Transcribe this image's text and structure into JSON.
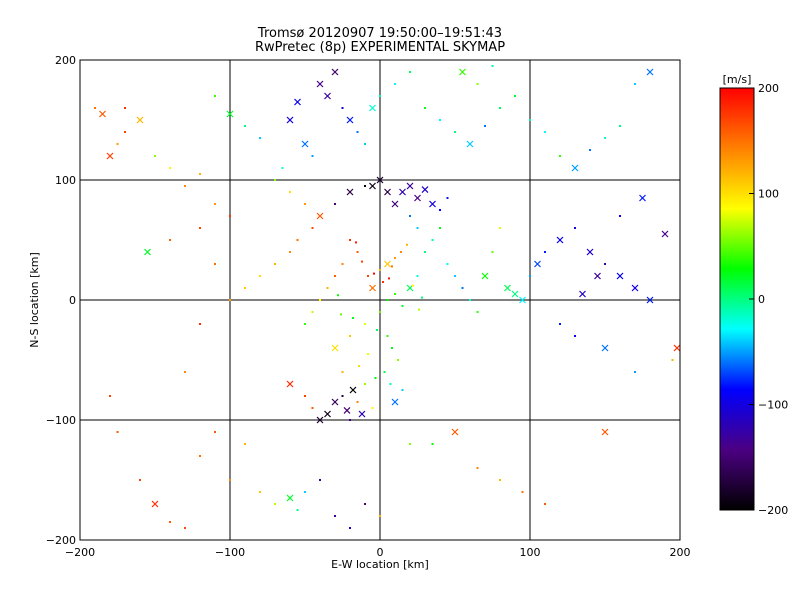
{
  "chart_data": {
    "type": "scatter",
    "title": "Tromsø 20120907 19:50:00–19:51:43",
    "subtitle": "RwPretec (8p) EXPERIMENTAL SKYMAP",
    "xlabel": "E-W location [km]",
    "ylabel": "N-S location [km]",
    "xlim": [
      -200,
      200
    ],
    "ylim": [
      -200,
      200
    ],
    "x_ticks": [
      -200,
      -100,
      0,
      100,
      200
    ],
    "y_ticks": [
      -200,
      -100,
      0,
      100,
      200
    ],
    "x_tick_labels": [
      "−200",
      "−100",
      "0",
      "100",
      "200"
    ],
    "y_tick_labels": [
      "−200",
      "−100",
      "0",
      "100",
      "200"
    ],
    "grid_lines_x": [
      -100,
      0,
      100
    ],
    "grid_lines_y": [
      -100,
      0,
      100
    ],
    "markers": [
      "dot",
      "cross"
    ],
    "colorbar": {
      "label": "[m/s]",
      "range": [
        -200,
        200
      ],
      "ticks": [
        200,
        100,
        0,
        -100,
        -200
      ],
      "tick_labels": [
        "200",
        "100",
        "0",
        "−100",
        "−200"
      ],
      "colormap": [
        "#000000",
        "#4b0082",
        "#0000ff",
        "#00ffff",
        "#00ff00",
        "#ffff00",
        "#ff8000",
        "#ff0000"
      ]
    },
    "points": [
      [
        -190,
        160,
        150,
        "dot"
      ],
      [
        -185,
        155,
        160,
        "cross"
      ],
      [
        -170,
        140,
        170,
        "dot"
      ],
      [
        -175,
        130,
        130,
        "dot"
      ],
      [
        -160,
        150,
        120,
        "cross"
      ],
      [
        -150,
        120,
        60,
        "dot"
      ],
      [
        -140,
        110,
        90,
        "dot"
      ],
      [
        -130,
        95,
        140,
        "dot"
      ],
      [
        -120,
        105,
        120,
        "dot"
      ],
      [
        -110,
        80,
        130,
        "dot"
      ],
      [
        -100,
        70,
        180,
        "dot"
      ],
      [
        -180,
        120,
        170,
        "cross"
      ],
      [
        -170,
        160,
        180,
        "dot"
      ],
      [
        -155,
        40,
        20,
        "cross"
      ],
      [
        -120,
        -20,
        180,
        "dot"
      ],
      [
        -130,
        -60,
        140,
        "dot"
      ],
      [
        -180,
        -80,
        170,
        "dot"
      ],
      [
        -175,
        -110,
        160,
        "dot"
      ],
      [
        -160,
        -150,
        170,
        "dot"
      ],
      [
        -150,
        -170,
        180,
        "cross"
      ],
      [
        -140,
        -185,
        160,
        "dot"
      ],
      [
        -130,
        -190,
        170,
        "dot"
      ],
      [
        -120,
        -130,
        150,
        "dot"
      ],
      [
        -110,
        -110,
        160,
        "dot"
      ],
      [
        -100,
        -150,
        140,
        "dot"
      ],
      [
        -90,
        -120,
        120,
        "dot"
      ],
      [
        -80,
        -160,
        110,
        "dot"
      ],
      [
        -70,
        -170,
        70,
        "dot"
      ],
      [
        -60,
        -165,
        20,
        "cross"
      ],
      [
        -55,
        -175,
        0,
        "dot"
      ],
      [
        -50,
        -160,
        -40,
        "dot"
      ],
      [
        -40,
        -150,
        -120,
        "dot"
      ],
      [
        -30,
        -180,
        -130,
        "dot"
      ],
      [
        -20,
        -190,
        -110,
        "dot"
      ],
      [
        -10,
        -170,
        -150,
        "dot"
      ],
      [
        0,
        -180,
        120,
        "dot"
      ],
      [
        20,
        -120,
        60,
        "dot"
      ],
      [
        35,
        -120,
        30,
        "dot"
      ],
      [
        50,
        -110,
        160,
        "cross"
      ],
      [
        65,
        -140,
        140,
        "dot"
      ],
      [
        80,
        -150,
        120,
        "dot"
      ],
      [
        95,
        -160,
        150,
        "dot"
      ],
      [
        110,
        -170,
        160,
        "dot"
      ],
      [
        150,
        -110,
        160,
        "cross"
      ],
      [
        -60,
        -70,
        180,
        "cross"
      ],
      [
        -50,
        -80,
        170,
        "dot"
      ],
      [
        -45,
        -90,
        160,
        "dot"
      ],
      [
        -40,
        -100,
        -180,
        "cross"
      ],
      [
        -35,
        -95,
        -190,
        "cross"
      ],
      [
        -30,
        -85,
        -160,
        "cross"
      ],
      [
        -25,
        -80,
        -170,
        "dot"
      ],
      [
        -22,
        -92,
        -150,
        "cross"
      ],
      [
        -20,
        -100,
        -140,
        "dot"
      ],
      [
        -18,
        -75,
        -200,
        "cross"
      ],
      [
        -15,
        -85,
        140,
        "dot"
      ],
      [
        -12,
        -95,
        -120,
        "cross"
      ],
      [
        -10,
        -70,
        60,
        "dot"
      ],
      [
        -5,
        -90,
        90,
        "dot"
      ],
      [
        -25,
        -60,
        120,
        "dot"
      ],
      [
        -30,
        -40,
        100,
        "cross"
      ],
      [
        -20,
        -30,
        110,
        "dot"
      ],
      [
        -10,
        -20,
        80,
        "dot"
      ],
      [
        0,
        -10,
        50,
        "dot"
      ],
      [
        5,
        0,
        30,
        "dot"
      ],
      [
        10,
        5,
        40,
        "dot"
      ],
      [
        -5,
        10,
        150,
        "cross"
      ],
      [
        -8,
        20,
        170,
        "dot"
      ],
      [
        0,
        25,
        120,
        "dot"
      ],
      [
        5,
        30,
        110,
        "cross"
      ],
      [
        10,
        35,
        130,
        "dot"
      ],
      [
        -15,
        40,
        160,
        "dot"
      ],
      [
        -20,
        50,
        180,
        "dot"
      ],
      [
        -25,
        30,
        140,
        "dot"
      ],
      [
        -30,
        20,
        160,
        "dot"
      ],
      [
        -35,
        10,
        120,
        "dot"
      ],
      [
        -40,
        0,
        90,
        "dot"
      ],
      [
        -45,
        -10,
        70,
        "dot"
      ],
      [
        -50,
        -20,
        40,
        "dot"
      ],
      [
        15,
        -5,
        20,
        "dot"
      ],
      [
        20,
        10,
        10,
        "cross"
      ],
      [
        25,
        20,
        -20,
        "dot"
      ],
      [
        30,
        40,
        0,
        "dot"
      ],
      [
        35,
        50,
        -10,
        "dot"
      ],
      [
        40,
        60,
        20,
        "dot"
      ],
      [
        45,
        30,
        -30,
        "dot"
      ],
      [
        50,
        20,
        -40,
        "dot"
      ],
      [
        55,
        10,
        -60,
        "dot"
      ],
      [
        60,
        0,
        -20,
        "dot"
      ],
      [
        65,
        -10,
        40,
        "dot"
      ],
      [
        70,
        20,
        30,
        "cross"
      ],
      [
        75,
        40,
        50,
        "dot"
      ],
      [
        80,
        60,
        80,
        "dot"
      ],
      [
        85,
        10,
        10,
        "cross"
      ],
      [
        90,
        5,
        0,
        "cross"
      ],
      [
        95,
        0,
        -30,
        "cross"
      ],
      [
        100,
        20,
        -50,
        "dot"
      ],
      [
        105,
        30,
        -70,
        "cross"
      ],
      [
        110,
        40,
        -80,
        "dot"
      ],
      [
        120,
        50,
        -90,
        "cross"
      ],
      [
        130,
        60,
        -100,
        "dot"
      ],
      [
        140,
        40,
        -110,
        "cross"
      ],
      [
        150,
        30,
        -120,
        "dot"
      ],
      [
        160,
        20,
        -90,
        "cross"
      ],
      [
        170,
        10,
        -100,
        "cross"
      ],
      [
        180,
        0,
        -80,
        "cross"
      ],
      [
        190,
        55,
        -140,
        "cross"
      ],
      [
        175,
        85,
        -80,
        "cross"
      ],
      [
        160,
        70,
        -90,
        "dot"
      ],
      [
        145,
        20,
        -130,
        "cross"
      ],
      [
        135,
        5,
        -110,
        "cross"
      ],
      [
        120,
        -20,
        -80,
        "dot"
      ],
      [
        130,
        -30,
        -90,
        "dot"
      ],
      [
        150,
        -40,
        -60,
        "cross"
      ],
      [
        170,
        -60,
        -50,
        "dot"
      ],
      [
        195,
        -50,
        120,
        "dot"
      ],
      [
        198,
        -40,
        180,
        "cross"
      ],
      [
        15,
        90,
        -120,
        "cross"
      ],
      [
        20,
        95,
        -130,
        "cross"
      ],
      [
        25,
        85,
        -140,
        "cross"
      ],
      [
        30,
        92,
        -110,
        "cross"
      ],
      [
        35,
        80,
        -100,
        "cross"
      ],
      [
        10,
        80,
        -150,
        "cross"
      ],
      [
        5,
        90,
        -170,
        "cross"
      ],
      [
        0,
        100,
        -180,
        "cross"
      ],
      [
        -5,
        95,
        -190,
        "cross"
      ],
      [
        40,
        75,
        -90,
        "dot"
      ],
      [
        45,
        85,
        -80,
        "dot"
      ],
      [
        20,
        70,
        -60,
        "dot"
      ],
      [
        25,
        60,
        -40,
        "dot"
      ],
      [
        -10,
        95,
        -200,
        "dot"
      ],
      [
        -20,
        90,
        -170,
        "cross"
      ],
      [
        -30,
        80,
        -150,
        "dot"
      ],
      [
        -40,
        70,
        160,
        "cross"
      ],
      [
        -45,
        60,
        170,
        "dot"
      ],
      [
        -55,
        50,
        150,
        "dot"
      ],
      [
        -60,
        40,
        140,
        "dot"
      ],
      [
        -70,
        30,
        120,
        "dot"
      ],
      [
        -80,
        20,
        100,
        "dot"
      ],
      [
        -90,
        10,
        110,
        "dot"
      ],
      [
        -100,
        0,
        130,
        "dot"
      ],
      [
        -110,
        30,
        150,
        "dot"
      ],
      [
        -120,
        60,
        170,
        "dot"
      ],
      [
        -140,
        50,
        160,
        "dot"
      ],
      [
        -60,
        150,
        -100,
        "cross"
      ],
      [
        -55,
        165,
        -90,
        "cross"
      ],
      [
        -50,
        130,
        -60,
        "cross"
      ],
      [
        -45,
        120,
        -50,
        "dot"
      ],
      [
        -40,
        180,
        -140,
        "cross"
      ],
      [
        -35,
        170,
        -130,
        "cross"
      ],
      [
        -30,
        190,
        -150,
        "cross"
      ],
      [
        -25,
        160,
        -100,
        "dot"
      ],
      [
        -20,
        150,
        -80,
        "cross"
      ],
      [
        -15,
        140,
        -60,
        "dot"
      ],
      [
        -10,
        130,
        -40,
        "dot"
      ],
      [
        -5,
        160,
        -20,
        "cross"
      ],
      [
        0,
        170,
        -10,
        "dot"
      ],
      [
        10,
        180,
        -30,
        "dot"
      ],
      [
        20,
        190,
        10,
        "dot"
      ],
      [
        30,
        160,
        20,
        "dot"
      ],
      [
        40,
        150,
        -20,
        "dot"
      ],
      [
        50,
        140,
        0,
        "dot"
      ],
      [
        60,
        130,
        -40,
        "cross"
      ],
      [
        70,
        145,
        -60,
        "dot"
      ],
      [
        80,
        160,
        10,
        "dot"
      ],
      [
        90,
        170,
        20,
        "dot"
      ],
      [
        100,
        150,
        -10,
        "dot"
      ],
      [
        110,
        140,
        -30,
        "dot"
      ],
      [
        120,
        120,
        40,
        "dot"
      ],
      [
        130,
        110,
        -50,
        "cross"
      ],
      [
        140,
        125,
        -60,
        "dot"
      ],
      [
        150,
        135,
        -20,
        "dot"
      ],
      [
        160,
        145,
        0,
        "dot"
      ],
      [
        170,
        180,
        -40,
        "dot"
      ],
      [
        180,
        190,
        -60,
        "cross"
      ],
      [
        -80,
        135,
        -40,
        "dot"
      ],
      [
        -90,
        145,
        0,
        "dot"
      ],
      [
        -100,
        155,
        20,
        "cross"
      ],
      [
        -110,
        170,
        40,
        "dot"
      ],
      [
        -65,
        110,
        -20,
        "dot"
      ],
      [
        -70,
        100,
        60,
        "dot"
      ],
      [
        -60,
        90,
        100,
        "dot"
      ],
      [
        -50,
        80,
        130,
        "dot"
      ],
      [
        55,
        190,
        40,
        "cross"
      ],
      [
        65,
        180,
        60,
        "dot"
      ],
      [
        75,
        195,
        -10,
        "dot"
      ],
      [
        5,
        -30,
        40,
        "dot"
      ],
      [
        8,
        -40,
        20,
        "dot"
      ],
      [
        12,
        -50,
        60,
        "dot"
      ],
      [
        -8,
        -45,
        80,
        "dot"
      ],
      [
        -14,
        -55,
        100,
        "dot"
      ],
      [
        -18,
        -15,
        20,
        "dot"
      ],
      [
        -2,
        -25,
        10,
        "dot"
      ],
      [
        2,
        15,
        180,
        "dot"
      ],
      [
        6,
        18,
        190,
        "dot"
      ],
      [
        -4,
        22,
        200,
        "dot"
      ],
      [
        8,
        28,
        150,
        "dot"
      ],
      [
        -12,
        32,
        170,
        "dot"
      ],
      [
        14,
        40,
        140,
        "dot"
      ],
      [
        18,
        46,
        120,
        "dot"
      ],
      [
        -16,
        48,
        190,
        "dot"
      ],
      [
        22,
        12,
        90,
        "dot"
      ],
      [
        26,
        -8,
        70,
        "dot"
      ],
      [
        -26,
        -12,
        50,
        "dot"
      ],
      [
        -28,
        4,
        30,
        "dot"
      ],
      [
        28,
        2,
        0,
        "dot"
      ],
      [
        3,
        -60,
        10,
        "dot"
      ],
      [
        7,
        -70,
        -10,
        "dot"
      ],
      [
        -3,
        -65,
        30,
        "dot"
      ],
      [
        10,
        -85,
        -60,
        "cross"
      ],
      [
        15,
        -75,
        -40,
        "dot"
      ]
    ]
  }
}
